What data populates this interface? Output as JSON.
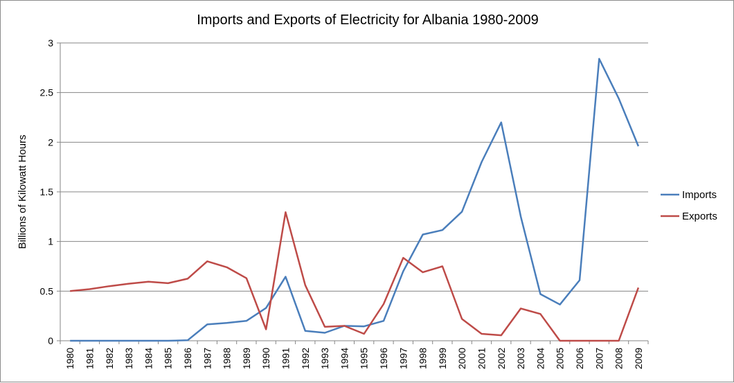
{
  "chart_data": {
    "type": "line",
    "title": "Imports and Exports of Electricity for Albania 1980-2009",
    "xlabel": "",
    "ylabel": "Billions of Kilowatt Hours",
    "ylim": [
      0,
      3
    ],
    "yticks": [
      "0",
      "0.5",
      "1",
      "1.5",
      "2",
      "2.5",
      "3"
    ],
    "grid": "horizontal",
    "legend_position": "right",
    "categories": [
      "1980",
      "1981",
      "1982",
      "1983",
      "1984",
      "1985",
      "1986",
      "1987",
      "1988",
      "1989",
      "1990",
      "1991",
      "1992",
      "1993",
      "1994",
      "1995",
      "1996",
      "1997",
      "1998",
      "1999",
      "2000",
      "2001",
      "2002",
      "2003",
      "2004",
      "2005",
      "2006",
      "2007",
      "2008",
      "2009"
    ],
    "series": [
      {
        "name": "Imports",
        "color": "#4a7ebb",
        "values": [
          0,
          0,
          0,
          0,
          0,
          0,
          0.005,
          0.165,
          0.18,
          0.2,
          0.33,
          0.645,
          0.1,
          0.08,
          0.15,
          0.145,
          0.2,
          0.7,
          1.07,
          1.115,
          1.3,
          1.8,
          2.2,
          1.25,
          0.47,
          0.365,
          0.61,
          2.84,
          2.44,
          1.96
        ]
      },
      {
        "name": "Exports",
        "color": "#be4b48",
        "values": [
          0.5,
          0.52,
          0.55,
          0.575,
          0.595,
          0.58,
          0.625,
          0.8,
          0.74,
          0.63,
          0.115,
          1.295,
          0.56,
          0.14,
          0.15,
          0.07,
          0.37,
          0.835,
          0.69,
          0.75,
          0.22,
          0.07,
          0.055,
          0.325,
          0.27,
          0,
          0,
          0,
          0,
          0.535
        ]
      }
    ]
  }
}
